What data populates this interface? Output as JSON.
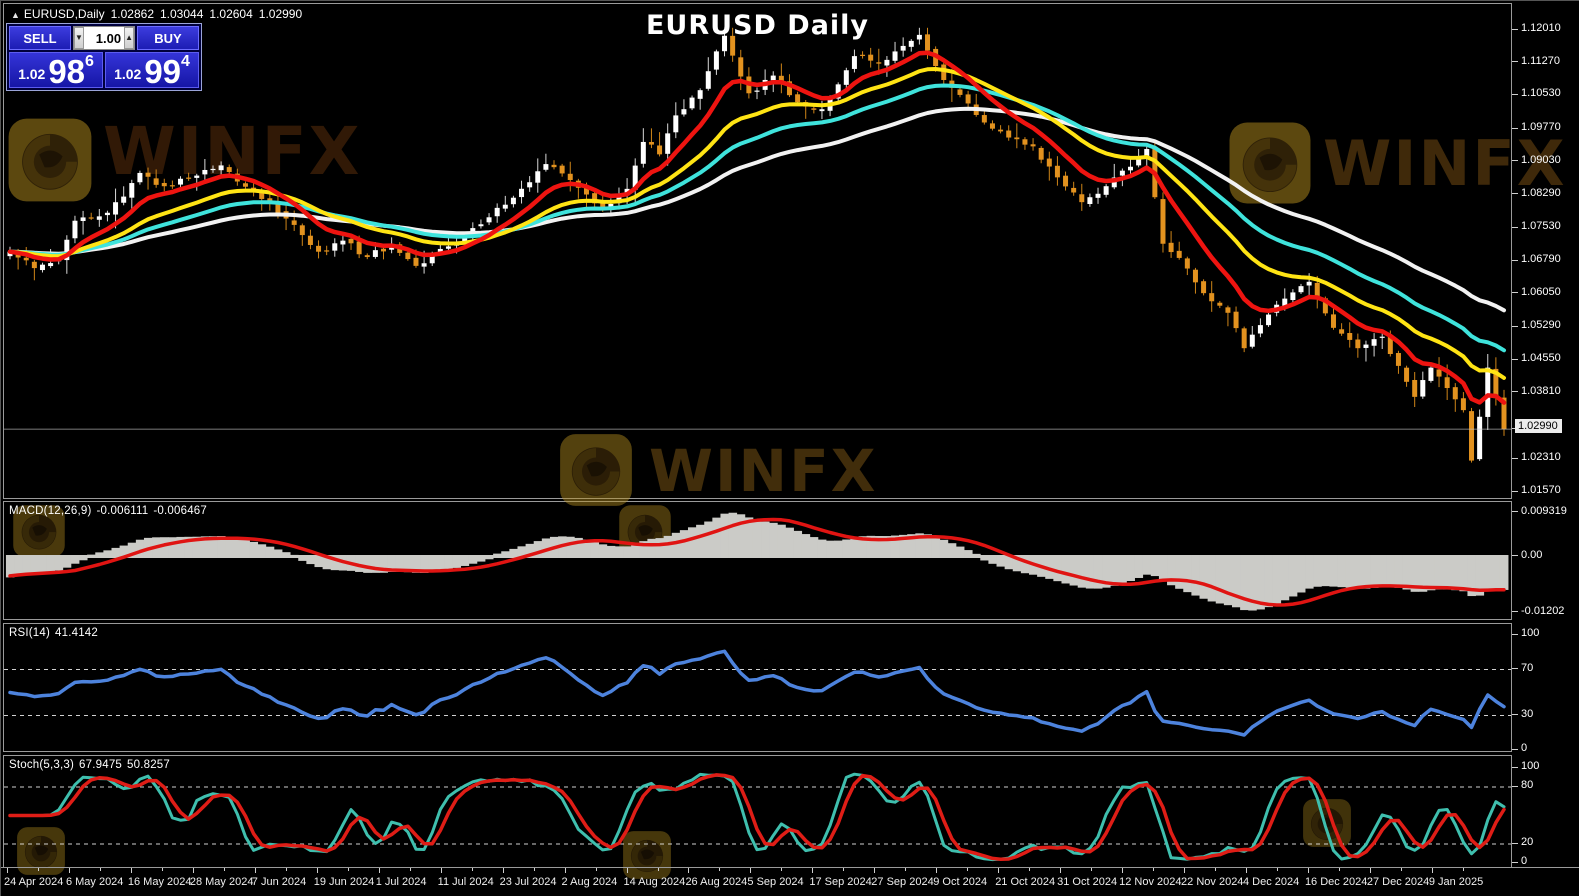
{
  "window": {
    "app": "MetaTrader chart",
    "symbol_info": {
      "marker": "▲",
      "symbol": "EURUSD,Daily",
      "open": "1.02862",
      "high": "1.03044",
      "low": "1.02604",
      "close": "1.02990"
    }
  },
  "title": "EURUSD Daily",
  "watermark": {
    "text": "WINFX"
  },
  "trade_panel": {
    "sell_label": "SELL",
    "buy_label": "BUY",
    "volume": "1.00",
    "spinner_down": "▼",
    "spinner_up": "▲",
    "sell_price": {
      "small": "1.02",
      "big": "98",
      "sup": "6"
    },
    "buy_price": {
      "small": "1.02",
      "big": "99",
      "sup": "4"
    }
  },
  "chart_data": [
    {
      "type": "candlestick",
      "title": "EURUSD Daily",
      "symbol": "EURUSD",
      "timeframe": "Daily",
      "ohlc": {
        "open": 1.02862,
        "high": 1.03044,
        "low": 1.02604,
        "close": 1.0299
      },
      "current_price": 1.0299,
      "candle_count": 185,
      "seed": 42,
      "noise": 0.0017,
      "wick": 0.0028,
      "up_color": "#ffffff",
      "down_color": "#e2921f",
      "up_wick": "#d9d9d9",
      "down_wick": "#cf8518",
      "close_path_anchors": [
        [
          0,
          1.07
        ],
        [
          3,
          1.0663
        ],
        [
          6,
          1.0685
        ],
        [
          8,
          1.077
        ],
        [
          12,
          1.0788
        ],
        [
          16,
          1.0878
        ],
        [
          19,
          1.0848
        ],
        [
          23,
          1.0872
        ],
        [
          26,
          1.0895
        ],
        [
          30,
          1.0838
        ],
        [
          34,
          1.0775
        ],
        [
          38,
          1.07
        ],
        [
          41,
          1.0725
        ],
        [
          44,
          1.0688
        ],
        [
          47,
          1.0715
        ],
        [
          50,
          1.0668
        ],
        [
          54,
          1.0712
        ],
        [
          58,
          1.0762
        ],
        [
          62,
          1.0822
        ],
        [
          66,
          1.0898
        ],
        [
          69,
          1.0862
        ],
        [
          73,
          1.0795
        ],
        [
          76,
          1.0842
        ],
        [
          78,
          1.0948
        ],
        [
          80,
          1.092
        ],
        [
          82,
          1.1008
        ],
        [
          85,
          1.1065
        ],
        [
          88,
          1.1188
        ],
        [
          91,
          1.1058
        ],
        [
          94,
          1.1098
        ],
        [
          97,
          1.1038
        ],
        [
          100,
          1.1022
        ],
        [
          104,
          1.1142
        ],
        [
          107,
          1.1125
        ],
        [
          110,
          1.1165
        ],
        [
          112,
          1.119
        ],
        [
          115,
          1.1088
        ],
        [
          118,
          1.1035
        ],
        [
          120,
          1.0992
        ],
        [
          123,
          1.0958
        ],
        [
          126,
          1.0938
        ],
        [
          129,
          1.0868
        ],
        [
          132,
          1.0812
        ],
        [
          135,
          1.0848
        ],
        [
          138,
          1.0892
        ],
        [
          140,
          1.0932
        ],
        [
          142,
          1.0718
        ],
        [
          145,
          1.0662
        ],
        [
          148,
          1.0588
        ],
        [
          150,
          1.0562
        ],
        [
          152,
          1.0482
        ],
        [
          155,
          1.0558
        ],
        [
          158,
          1.0608
        ],
        [
          160,
          1.0632
        ],
        [
          163,
          1.0528
        ],
        [
          166,
          1.0482
        ],
        [
          169,
          1.0508
        ],
        [
          171,
          1.0442
        ],
        [
          173,
          1.0372
        ],
        [
          175,
          1.0438
        ],
        [
          177,
          1.0392
        ],
        [
          179,
          1.0342
        ],
        [
          180,
          1.0228
        ],
        [
          182,
          1.0438
        ],
        [
          184,
          1.0299
        ]
      ],
      "moving_averages": [
        {
          "name": "MA slowest white",
          "period": 56,
          "color": "#f2f2f2",
          "width": 4
        },
        {
          "name": "MA slow cyan",
          "period": 34,
          "color": "#3fe3dc",
          "width": 4
        },
        {
          "name": "MA medium yellow",
          "period": 21,
          "color": "#ffe414",
          "width": 4
        },
        {
          "name": "MA fast red",
          "period": 9,
          "color": "#ee1410",
          "width": 4.5
        }
      ],
      "ylim": [
        1.0157,
        1.1201
      ],
      "y_axis_labels": [
        {
          "text": "1.12010",
          "value": 1.1201
        },
        {
          "text": "1.11270",
          "value": 1.1127
        },
        {
          "text": "1.10530",
          "value": 1.1053
        },
        {
          "text": "1.09770",
          "value": 1.0977
        },
        {
          "text": "1.09030",
          "value": 1.0903
        },
        {
          "text": "1.08290",
          "value": 1.0829
        },
        {
          "text": "1.07530",
          "value": 1.0753
        },
        {
          "text": "1.06790",
          "value": 1.0679
        },
        {
          "text": "1.06050",
          "value": 1.0605
        },
        {
          "text": "1.05290",
          "value": 1.0529
        },
        {
          "text": "1.04550",
          "value": 1.0455
        },
        {
          "text": "1.03810",
          "value": 1.0381
        },
        {
          "text": "1.02990",
          "value": 1.0299,
          "highlight": true
        },
        {
          "text": "1.02310",
          "value": 1.0231
        },
        {
          "text": "1.01570",
          "value": 1.0157
        }
      ]
    },
    {
      "type": "macd",
      "label_name": "MACD(12,26,9)",
      "value_main": "-0.006111",
      "value_signal": "-0.006467",
      "params": [
        12,
        26,
        9
      ],
      "histogram_color": "#cbcbc7",
      "signal_color": "#e01412",
      "ylim": [
        -0.01202,
        0.009319
      ],
      "y_axis_labels": [
        {
          "text": "0.009319",
          "value": 0.009319
        },
        {
          "text": "0.00",
          "value": 0
        },
        {
          "text": "-0.01202",
          "value": -0.01202
        }
      ]
    },
    {
      "type": "rsi",
      "label_name": "RSI(14)",
      "value": "41.4142",
      "params": [
        14
      ],
      "color": "#4d83dd",
      "levels": [
        70,
        30
      ],
      "ylim": [
        0,
        100
      ],
      "y_axis_labels": [
        {
          "text": "100",
          "value": 100
        },
        {
          "text": "70",
          "value": 70
        },
        {
          "text": "30",
          "value": 30
        },
        {
          "text": "0",
          "value": 0
        }
      ]
    },
    {
      "type": "stochastic",
      "label_name": "Stoch(5,3,3)",
      "value_k": "67.9475",
      "value_d": "50.8257",
      "params": [
        5,
        3,
        3
      ],
      "k_color": "#3fbfae",
      "d_color": "#df1d16",
      "levels": [
        80,
        20
      ],
      "ylim": [
        0,
        100
      ],
      "y_axis_labels": [
        {
          "text": "100",
          "value": 100
        },
        {
          "text": "80",
          "value": 80
        },
        {
          "text": "20",
          "value": 20
        },
        {
          "text": "0",
          "value": 0
        }
      ]
    }
  ],
  "x_labels": [
    "24 Apr 2024",
    "6 May 2024",
    "16 May 2024",
    "28 May 2024",
    "7 Jun 2024",
    "19 Jun 2024",
    "1 Jul 2024",
    "11 Jul 2024",
    "23 Jul 2024",
    "2 Aug 2024",
    "14 Aug 2024",
    "26 Aug 2024",
    "5 Sep 2024",
    "17 Sep 2024",
    "27 Sep 2024",
    "9 Oct 2024",
    "21 Oct 2024",
    "31 Oct 2024",
    "12 Nov 2024",
    "22 Nov 2024",
    "4 Dec 2024",
    "16 Dec 2024",
    "27 Dec 2024",
    "9 Jan 2025"
  ]
}
